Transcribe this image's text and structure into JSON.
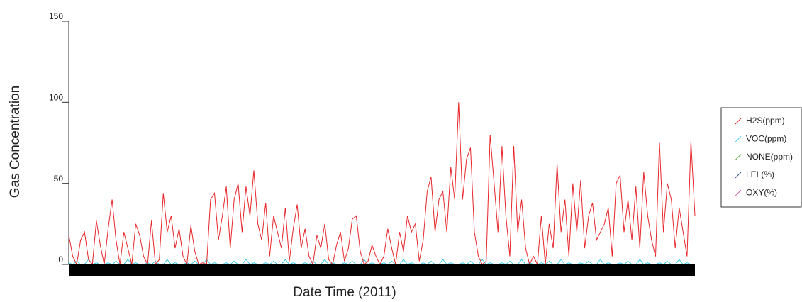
{
  "chart_data": {
    "type": "line",
    "xlabel": "Date Time (2011)",
    "ylabel": "Gas Concentration",
    "ylim": [
      0,
      150
    ],
    "yticks": [
      0,
      50,
      100,
      150
    ],
    "legend": "right",
    "series": [
      {
        "name": "H2S(ppm)",
        "color": "#e8262b",
        "values": [
          18,
          5,
          0,
          15,
          20,
          3,
          0,
          27,
          12,
          0,
          22,
          40,
          15,
          0,
          20,
          10,
          0,
          25,
          18,
          5,
          0,
          27,
          0,
          3,
          44,
          20,
          30,
          10,
          22,
          5,
          0,
          24,
          8,
          0,
          1,
          0,
          40,
          44,
          15,
          30,
          48,
          10,
          40,
          50,
          20,
          48,
          30,
          58,
          25,
          15,
          38,
          5,
          30,
          20,
          10,
          35,
          2,
          22,
          37,
          10,
          22,
          5,
          0,
          18,
          10,
          25,
          3,
          0,
          12,
          20,
          2,
          10,
          28,
          30,
          8,
          0,
          2,
          12,
          5,
          0,
          5,
          22,
          10,
          0,
          20,
          8,
          30,
          20,
          25,
          2,
          15,
          45,
          54,
          20,
          40,
          45,
          20,
          60,
          40,
          100,
          40,
          65,
          72,
          20,
          5,
          0,
          2,
          80,
          50,
          20,
          73,
          30,
          5,
          73,
          20,
          40,
          10,
          0,
          5,
          0,
          30,
          0,
          25,
          10,
          62,
          20,
          40,
          5,
          50,
          20,
          52,
          10,
          30,
          38,
          15,
          20,
          25,
          35,
          5,
          50,
          55,
          20,
          40,
          15,
          48,
          10,
          57,
          30,
          15,
          5,
          75,
          20,
          50,
          40,
          10,
          35,
          20,
          5,
          76,
          30
        ]
      },
      {
        "name": "VOC(ppm)",
        "color": "#3cc8e6",
        "values": [
          1,
          0,
          2,
          0,
          0,
          3,
          0,
          1,
          0,
          0,
          1,
          0,
          2,
          0,
          0,
          3,
          0,
          1,
          0,
          0,
          1,
          0,
          2,
          0,
          0,
          3,
          0,
          1,
          0,
          0,
          1,
          0,
          2,
          0,
          0,
          3,
          0,
          1,
          0,
          0,
          1,
          0,
          2,
          0,
          0,
          3,
          0,
          1,
          0,
          0,
          1,
          0,
          2,
          0,
          0,
          3,
          0,
          1,
          0,
          0,
          1,
          0,
          2,
          0,
          0,
          3,
          0,
          1,
          0,
          0,
          1,
          0,
          2,
          0,
          0,
          3,
          0,
          1,
          0,
          0,
          1,
          0,
          2,
          0,
          0,
          3,
          0,
          1,
          0,
          0,
          1,
          0,
          2,
          0,
          0,
          3,
          0,
          1,
          0,
          0,
          1,
          0,
          2,
          0,
          0,
          3,
          0,
          1,
          0,
          0,
          1,
          0,
          2,
          0,
          0,
          3,
          0,
          1,
          0,
          0,
          1,
          0,
          2,
          0,
          0,
          3,
          0,
          1,
          0,
          0,
          1,
          0,
          2,
          0,
          0,
          3,
          0,
          1,
          0,
          0,
          1,
          0,
          2,
          0,
          0,
          3,
          0,
          1,
          0,
          0,
          1,
          0,
          2,
          0,
          0,
          3,
          0,
          1,
          0,
          0
        ]
      },
      {
        "name": "NONE(ppm)",
        "color": "#5aa83c",
        "values": [
          0,
          0,
          0,
          0,
          0,
          0,
          0,
          0,
          0,
          0,
          0,
          0,
          0,
          0,
          0,
          0,
          0,
          0,
          0,
          0,
          0,
          0,
          0,
          0,
          0,
          0,
          0,
          0,
          0,
          0,
          0,
          0,
          0,
          0,
          0,
          0,
          0,
          0,
          0,
          0,
          0,
          0,
          0,
          0,
          0,
          0,
          0,
          0,
          0,
          0,
          0,
          0,
          0,
          0,
          0,
          0,
          0,
          0,
          0,
          0,
          0,
          0,
          0,
          0,
          0,
          0,
          0,
          0,
          0,
          0,
          0,
          0,
          0,
          0,
          0,
          0,
          0,
          0,
          0,
          0,
          0,
          0,
          0,
          0,
          0,
          0,
          0,
          0,
          0,
          0,
          0,
          0,
          0,
          0,
          0,
          0,
          0,
          0,
          0,
          0,
          0,
          0,
          0,
          0,
          0,
          0,
          0,
          0,
          0,
          0,
          0,
          0,
          0,
          0,
          0,
          0,
          0,
          0,
          0,
          0,
          0,
          0,
          0,
          0,
          0,
          0,
          0,
          0,
          0,
          0,
          0,
          0,
          0,
          0,
          0,
          0,
          0,
          0,
          0,
          0,
          0,
          0,
          0,
          0,
          0,
          0,
          0,
          0,
          0,
          0,
          0,
          0,
          0,
          0,
          0,
          0,
          0,
          0,
          0,
          0
        ]
      },
      {
        "name": "LEL(%)",
        "color": "#2a4f8a",
        "values": [
          0,
          0,
          0,
          0,
          0,
          0,
          0,
          0,
          0,
          0,
          0,
          0,
          0,
          0,
          0,
          0,
          0,
          0,
          0,
          0,
          0,
          0,
          0,
          0,
          0,
          0,
          0,
          0,
          0,
          0,
          0,
          0,
          0,
          0,
          0,
          0,
          0,
          0,
          0,
          0,
          0,
          0,
          0,
          0,
          0,
          0,
          0,
          0,
          0,
          0,
          0,
          0,
          0,
          0,
          0,
          0,
          0,
          0,
          0,
          0,
          0,
          0,
          0,
          0,
          0,
          0,
          0,
          0,
          0,
          0,
          0,
          0,
          0,
          0,
          0,
          0,
          0,
          0,
          0,
          0,
          0,
          0,
          0,
          0,
          0,
          0,
          0,
          0,
          0,
          0,
          0,
          0,
          0,
          0,
          0,
          0,
          0,
          0,
          0,
          0,
          0,
          0,
          0,
          0,
          0,
          0,
          0,
          0,
          0,
          0,
          0,
          0,
          0,
          0,
          0,
          0,
          0,
          0,
          0,
          0,
          0,
          0,
          0,
          0,
          0,
          0,
          0,
          0,
          0,
          0,
          0,
          0,
          0,
          0,
          0,
          0,
          0,
          0,
          0,
          0,
          0,
          0,
          0,
          0,
          0,
          0,
          0,
          0,
          0,
          0,
          0,
          0,
          0,
          0,
          0,
          0,
          0,
          0,
          0,
          0
        ]
      },
      {
        "name": "OXY(%)",
        "color": "#d45fb0",
        "values": [
          0,
          0,
          0,
          0,
          0,
          0,
          0,
          0,
          0,
          0,
          0,
          0,
          0,
          0,
          0,
          0,
          0,
          0,
          0,
          0,
          0,
          0,
          0,
          0,
          0,
          0,
          0,
          0,
          0,
          0,
          0,
          0,
          0,
          0,
          0,
          0,
          0,
          0,
          0,
          0,
          0,
          0,
          0,
          0,
          0,
          0,
          0,
          0,
          0,
          0,
          0,
          0,
          0,
          0,
          0,
          0,
          0,
          0,
          0,
          0,
          0,
          0,
          0,
          0,
          0,
          0,
          0,
          0,
          0,
          0,
          0,
          0,
          0,
          0,
          0,
          0,
          0,
          0,
          0,
          0,
          0,
          0,
          0,
          0,
          0,
          0,
          0,
          0,
          0,
          0,
          0,
          0,
          0,
          0,
          0,
          0,
          0,
          0,
          0,
          0,
          0,
          0,
          0,
          0,
          0,
          0,
          0,
          0,
          0,
          0,
          0,
          0,
          0,
          0,
          0,
          0,
          0,
          0,
          0,
          0,
          0,
          0,
          0,
          0,
          0,
          0,
          0,
          0,
          0,
          0,
          0,
          0,
          0,
          0,
          0,
          0,
          0,
          0,
          0,
          0,
          0,
          0,
          0,
          0,
          0,
          0,
          0,
          0,
          0,
          0,
          0,
          0,
          0,
          0,
          0,
          0,
          0,
          0,
          0,
          0
        ]
      }
    ]
  }
}
